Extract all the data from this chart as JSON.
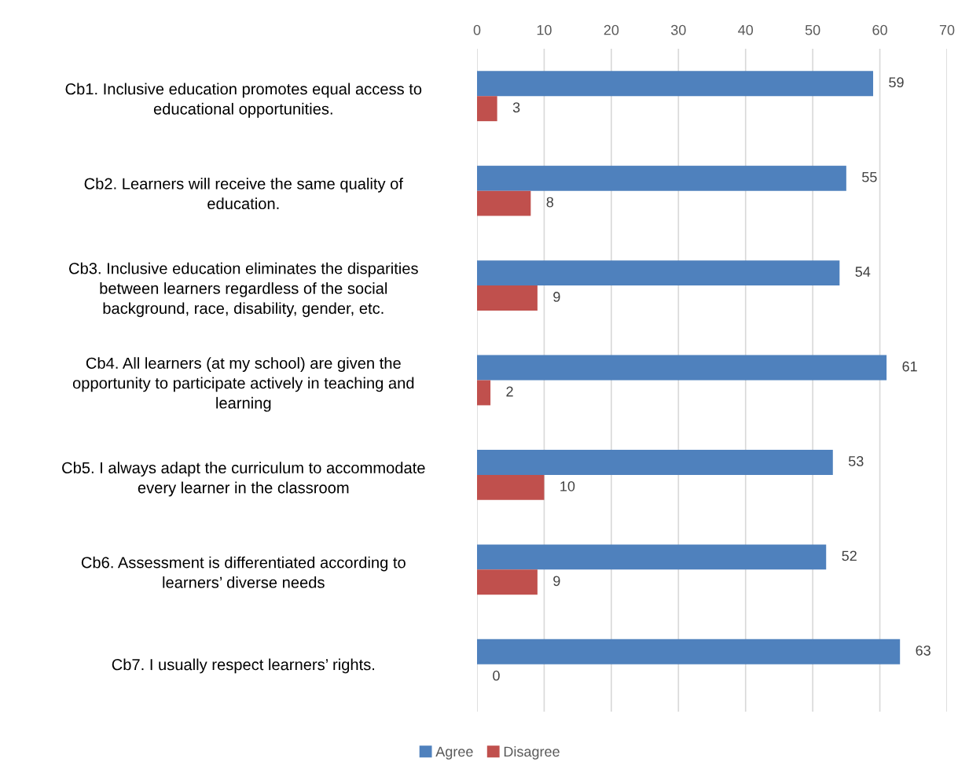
{
  "chart_data": {
    "type": "bar",
    "orientation": "horizontal",
    "categories": [
      "Cb1. Inclusive education promotes equal access to\neducational opportunities.",
      "Cb2. Learners will receive the same quality of\neducation.",
      "Cb3. Inclusive education eliminates the disparities\nbetween learners regardless of the social\nbackground, race, disability, gender, etc.",
      "Cb4. All learners (at my school) are given the\nopportunity to participate actively in teaching and\nlearning",
      "Cb5. I always adapt the curriculum to accommodate\nevery learner in the classroom",
      "Cb6. Assessment is differentiated according to\nlearners’ diverse needs",
      "Cb7. I usually respect learners’ rights."
    ],
    "series": [
      {
        "name": "Agree",
        "color": "#4f81bd",
        "values": [
          59,
          55,
          54,
          61,
          53,
          52,
          63
        ]
      },
      {
        "name": "Disagree",
        "color": "#c0504d",
        "values": [
          3,
          8,
          9,
          2,
          10,
          9,
          0
        ]
      }
    ],
    "xlim": [
      0,
      70
    ],
    "xticks": [
      0,
      10,
      20,
      30,
      40,
      50,
      60,
      70
    ],
    "grid": "x",
    "legend": "bottom",
    "data_labels": true
  }
}
